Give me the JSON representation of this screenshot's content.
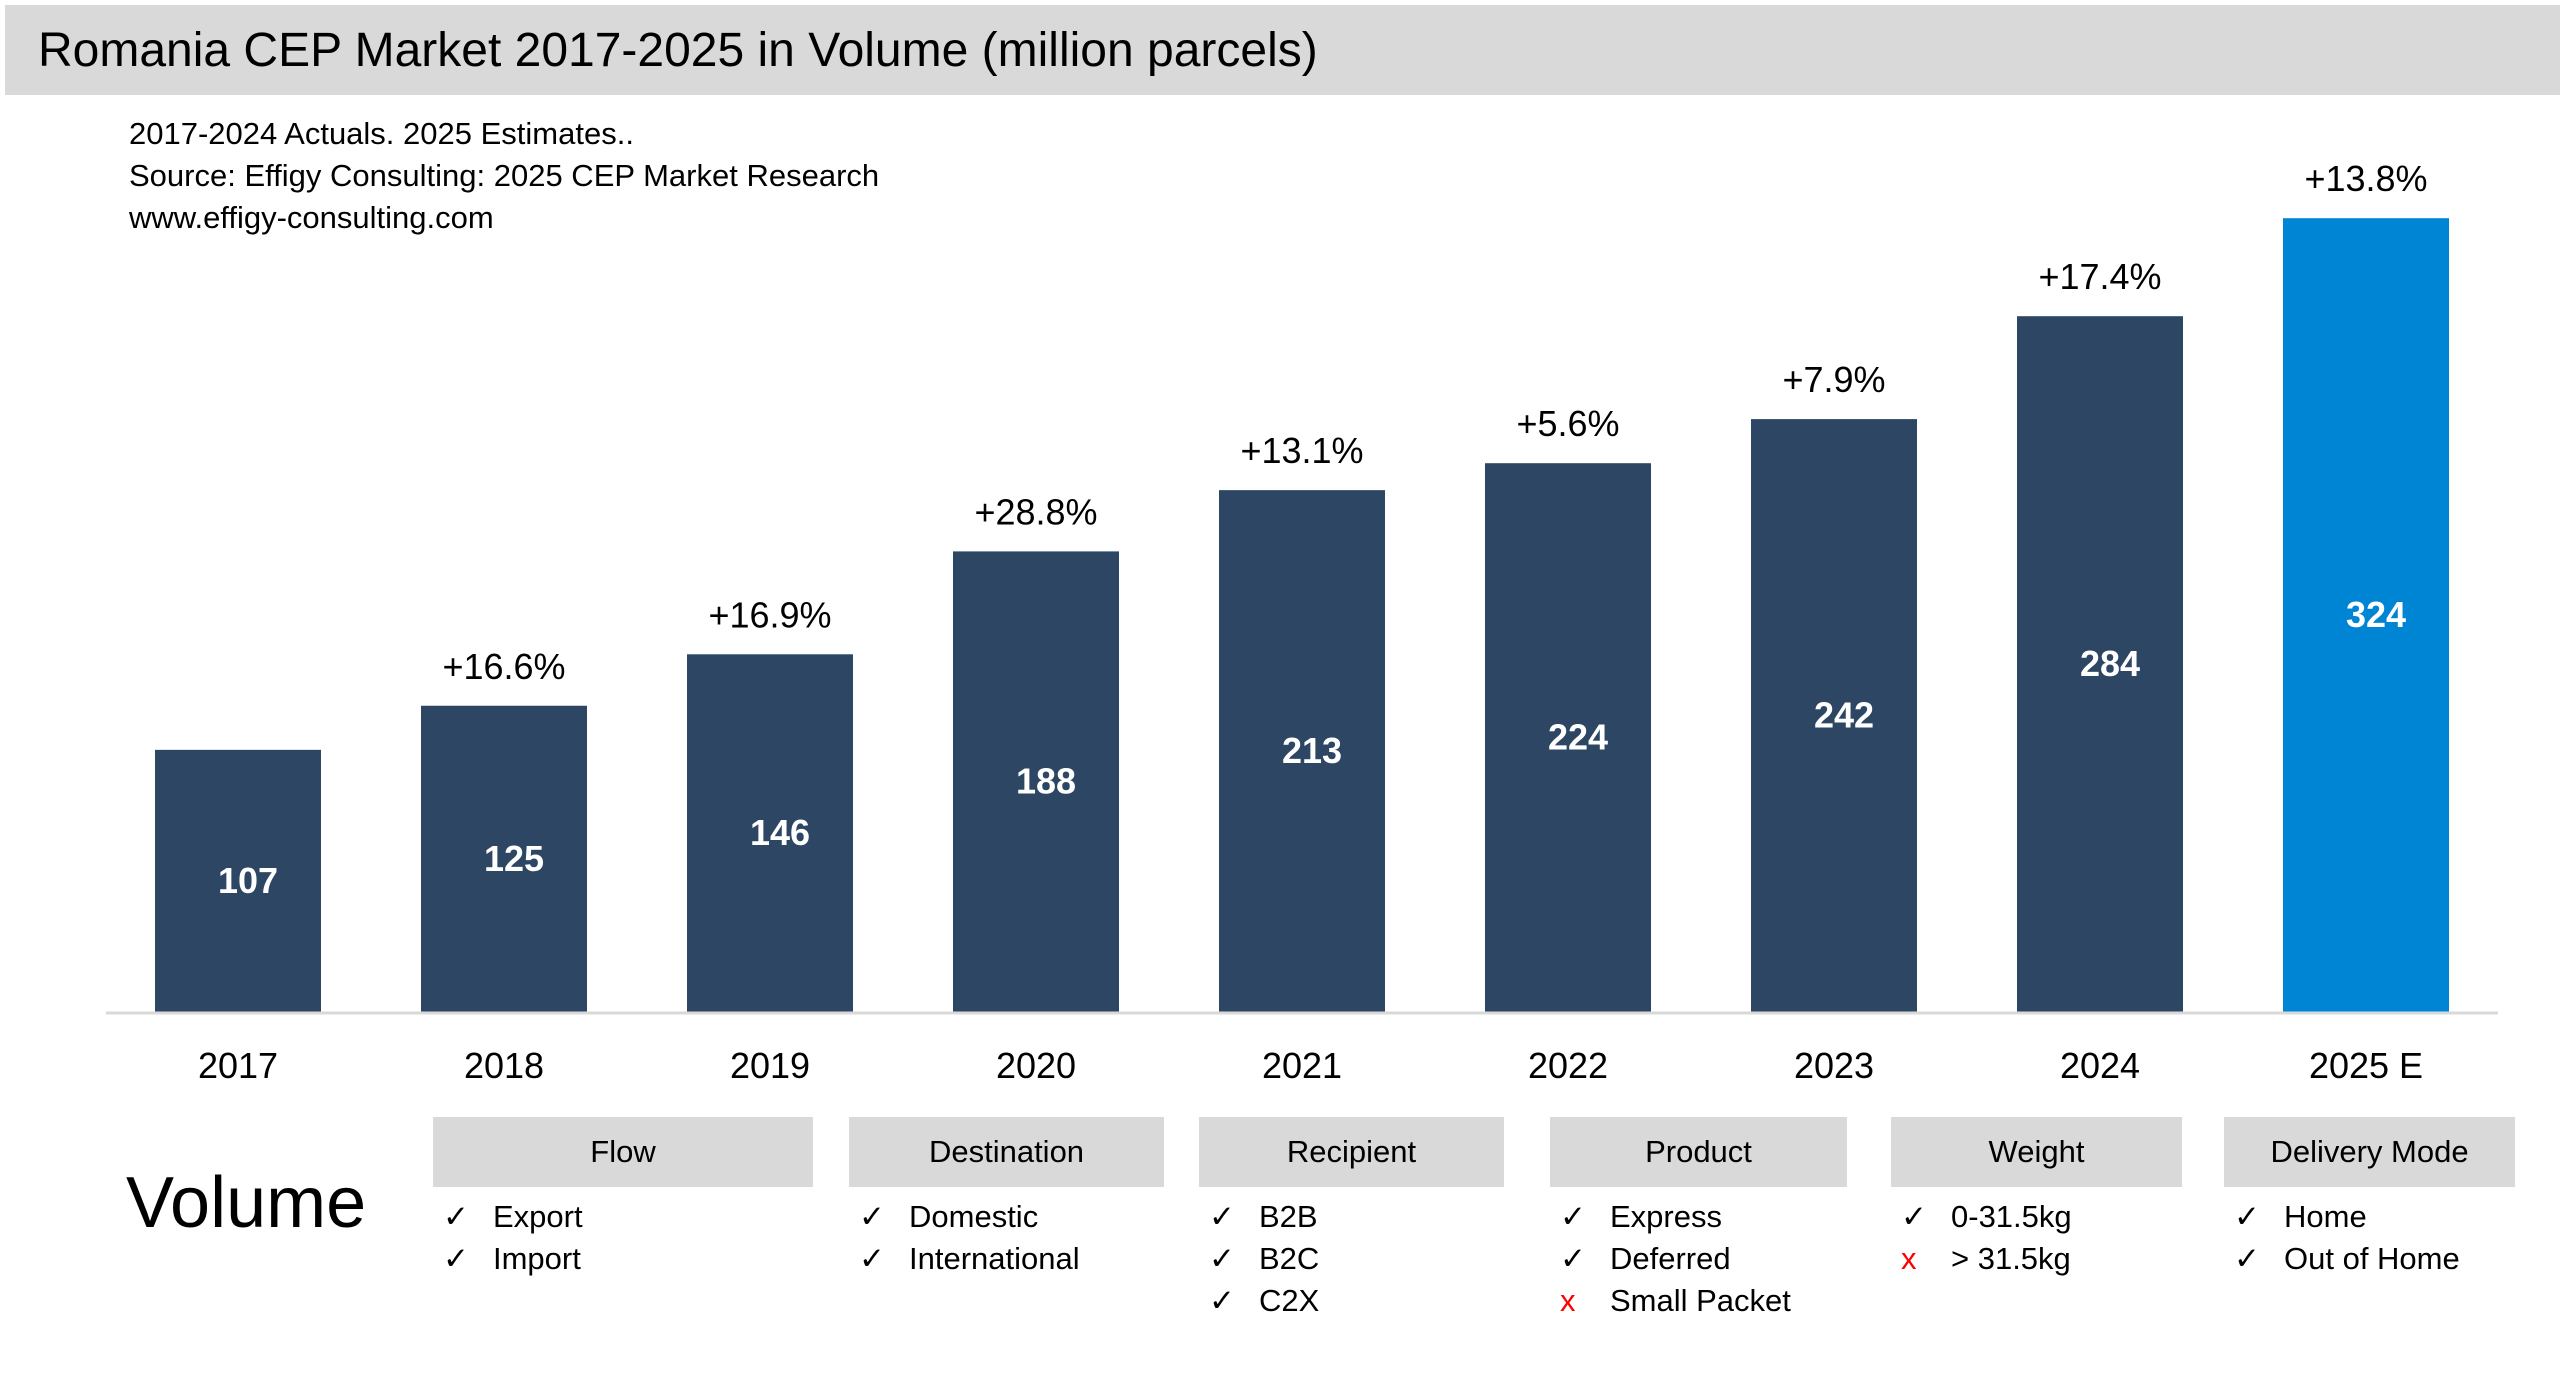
{
  "header": {
    "title": "Romania CEP Market 2017-2025 in Volume (million parcels)"
  },
  "notes": [
    "2017-2024 Actuals. 2025 Estimates..",
    "Source: Effigy Consulting: 2025 CEP Market Research",
    "www.effigy-consulting.com"
  ],
  "chart_data": {
    "type": "bar",
    "title": "Romania CEP Market 2017-2025 in Volume (million parcels)",
    "categories": [
      "2017",
      "2018",
      "2019",
      "2020",
      "2021",
      "2022",
      "2023",
      "2024",
      "2025 E"
    ],
    "values": [
      107,
      125,
      146,
      188,
      213,
      224,
      242,
      284,
      324
    ],
    "growth_labels": [
      "",
      "+16.6%",
      "+16.9%",
      "+28.8%",
      "+13.1%",
      "+5.6%",
      "+7.9%",
      "+17.4%",
      "+13.8%"
    ],
    "colors": {
      "actual": "#2c4664",
      "estimate": "#0085d5"
    },
    "ylim": [
      0,
      340
    ],
    "grid": false,
    "legend": "none"
  },
  "segmentation": {
    "label": "Volume",
    "categories": [
      {
        "title": "Flow",
        "items": [
          {
            "mark": "✓",
            "ok": true,
            "text": "Export"
          },
          {
            "mark": "✓",
            "ok": true,
            "text": "Import"
          }
        ]
      },
      {
        "title": "Destination",
        "items": [
          {
            "mark": "✓",
            "ok": true,
            "text": "Domestic"
          },
          {
            "mark": "✓",
            "ok": true,
            "text": "International"
          }
        ]
      },
      {
        "title": "Recipient",
        "items": [
          {
            "mark": "✓",
            "ok": true,
            "text": "B2B"
          },
          {
            "mark": "✓",
            "ok": true,
            "text": "B2C"
          },
          {
            "mark": "✓",
            "ok": true,
            "text": "C2X"
          }
        ]
      },
      {
        "title": "Product",
        "items": [
          {
            "mark": "✓",
            "ok": true,
            "text": "Express"
          },
          {
            "mark": "✓",
            "ok": true,
            "text": "Deferred"
          },
          {
            "mark": "x",
            "ok": false,
            "text": "Small Packet"
          }
        ]
      },
      {
        "title": "Weight",
        "items": [
          {
            "mark": "✓",
            "ok": true,
            "text": "0-31.5kg"
          },
          {
            "mark": "x",
            "ok": false,
            "text": "> 31.5kg"
          }
        ]
      },
      {
        "title": "Delivery Mode",
        "items": [
          {
            "mark": "✓",
            "ok": true,
            "text": "Home"
          },
          {
            "mark": "✓",
            "ok": true,
            "text": "Out of Home"
          }
        ]
      }
    ]
  }
}
